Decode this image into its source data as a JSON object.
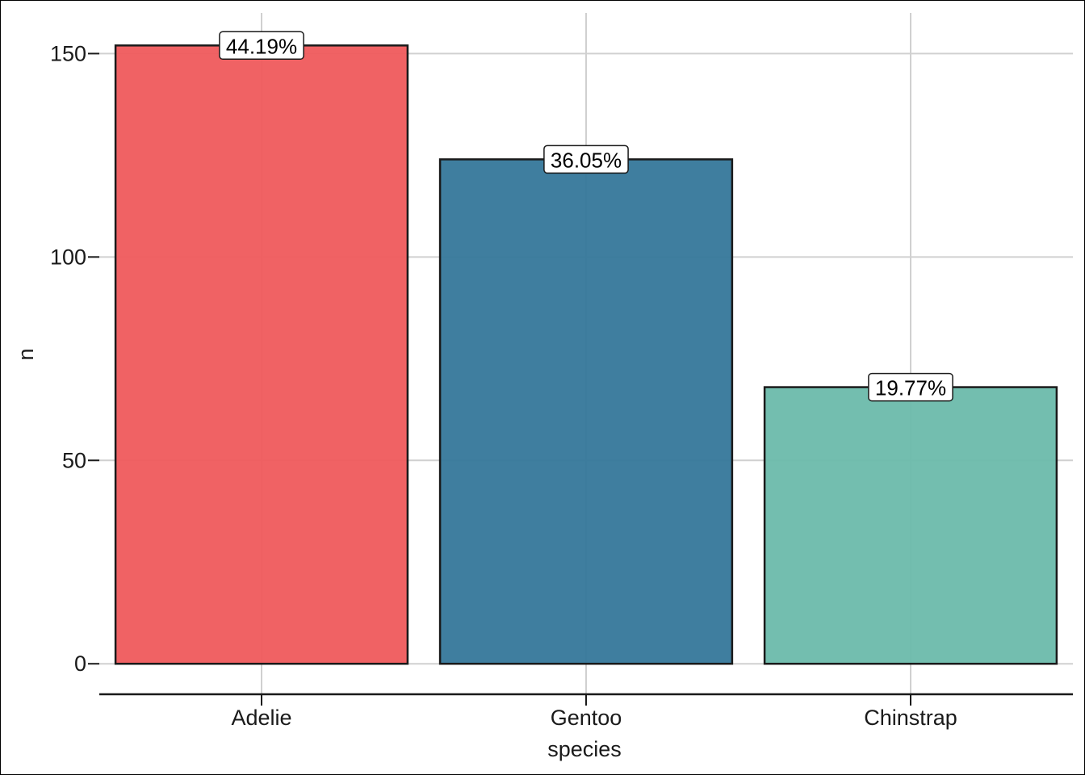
{
  "chart_data": {
    "type": "bar",
    "categories": [
      "Adelie",
      "Gentoo",
      "Chinstrap"
    ],
    "values": [
      152,
      124,
      68
    ],
    "data_labels": [
      "44.19%",
      "36.05%",
      "19.77%"
    ],
    "colors": [
      "#ef5a5c",
      "#35779a",
      "#6cbaab"
    ],
    "xlabel": "species",
    "ylabel": "n",
    "ylim": [
      -7.3,
      160
    ],
    "yticks": [
      0,
      50,
      100,
      150
    ],
    "grid": true,
    "legend": "none"
  }
}
